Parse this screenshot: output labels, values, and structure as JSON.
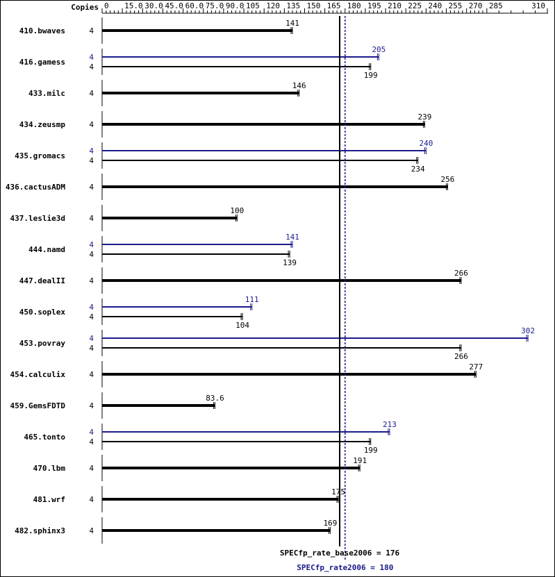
{
  "chart_data": {
    "type": "bar",
    "orientation": "horizontal",
    "copies_header": "Copies",
    "x_ticks": [
      "0",
      "15.0",
      "30.0",
      "45.0",
      "60.0",
      "75.0",
      "90.0",
      "105",
      "120",
      "135",
      "150",
      "165",
      "180",
      "195",
      "210",
      "225",
      "240",
      "255",
      "270",
      "285",
      "310"
    ],
    "tick_values": [
      0,
      15,
      30,
      45,
      60,
      75,
      90,
      105,
      120,
      135,
      150,
      165,
      180,
      195,
      210,
      225,
      240,
      255,
      270,
      285,
      310
    ],
    "xlim": [
      0,
      310
    ],
    "grid": false,
    "colors": {
      "base": "#000000",
      "peak": "#1a1a8c"
    },
    "benchmarks": [
      {
        "name": "410.bwaves",
        "base": {
          "copies": "4",
          "value": 141,
          "label": "141"
        }
      },
      {
        "name": "416.gamess",
        "peak": {
          "copies": "4",
          "value": 205,
          "label": "205"
        },
        "base": {
          "copies": "4",
          "value": 199,
          "label": "199"
        }
      },
      {
        "name": "433.milc",
        "base": {
          "copies": "4",
          "value": 146,
          "label": "146"
        }
      },
      {
        "name": "434.zeusmp",
        "base": {
          "copies": "4",
          "value": 239,
          "label": "239"
        }
      },
      {
        "name": "435.gromacs",
        "peak": {
          "copies": "4",
          "value": 240,
          "label": "240"
        },
        "base": {
          "copies": "4",
          "value": 234,
          "label": "234"
        }
      },
      {
        "name": "436.cactusADM",
        "base": {
          "copies": "4",
          "value": 256,
          "label": "256"
        }
      },
      {
        "name": "437.leslie3d",
        "base": {
          "copies": "4",
          "value": 100,
          "label": "100"
        }
      },
      {
        "name": "444.namd",
        "peak": {
          "copies": "4",
          "value": 141,
          "label": "141"
        },
        "base": {
          "copies": "4",
          "value": 139,
          "label": "139"
        }
      },
      {
        "name": "447.dealII",
        "base": {
          "copies": "4",
          "value": 266,
          "label": "266"
        }
      },
      {
        "name": "450.soplex",
        "peak": {
          "copies": "4",
          "value": 111,
          "label": "111"
        },
        "base": {
          "copies": "4",
          "value": 104,
          "label": "104"
        }
      },
      {
        "name": "453.povray",
        "peak": {
          "copies": "4",
          "value": 302,
          "label": "302"
        },
        "base": {
          "copies": "4",
          "value": 266,
          "label": "266"
        }
      },
      {
        "name": "454.calculix",
        "base": {
          "copies": "4",
          "value": 277,
          "label": "277"
        }
      },
      {
        "name": "459.GemsFDTD",
        "base": {
          "copies": "4",
          "value": 83.6,
          "label": "83.6"
        }
      },
      {
        "name": "465.tonto",
        "peak": {
          "copies": "4",
          "value": 213,
          "label": "213"
        },
        "base": {
          "copies": "4",
          "value": 199,
          "label": "199"
        }
      },
      {
        "name": "470.lbm",
        "base": {
          "copies": "4",
          "value": 191,
          "label": "191"
        }
      },
      {
        "name": "481.wrf",
        "base": {
          "copies": "4",
          "value": 175,
          "label": "175"
        }
      },
      {
        "name": "482.sphinx3",
        "base": {
          "copies": "4",
          "value": 169,
          "label": "169"
        }
      }
    ],
    "reference_lines": {
      "base": {
        "value": 176,
        "label": "SPECfp_rate_base2006 = 176"
      },
      "peak": {
        "value": 180,
        "label": "SPECfp_rate2006 = 180"
      }
    }
  }
}
